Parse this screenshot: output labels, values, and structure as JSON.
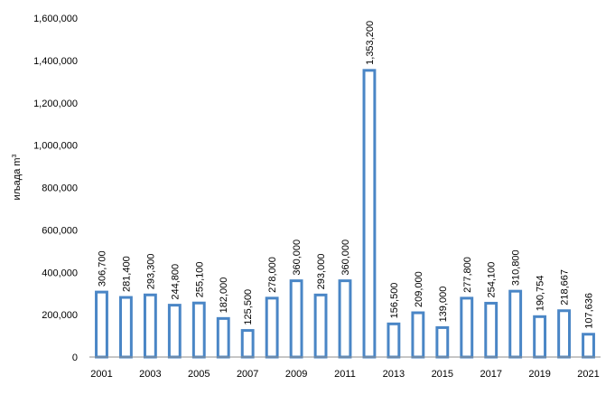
{
  "chart_data": {
    "type": "bar",
    "title": "",
    "xlabel": "",
    "ylabel": "иљада m",
    "ylabel_superscript": "3",
    "ylim": [
      0,
      1600000
    ],
    "yticks": [
      0,
      200000,
      400000,
      600000,
      800000,
      1000000,
      1200000,
      1400000,
      1600000
    ],
    "ytick_labels": [
      "0",
      "200,000",
      "400,000",
      "600,000",
      "800,000",
      "1,000,000",
      "1,200,000",
      "1,400,000",
      "1,600,000"
    ],
    "categories": [
      "2001",
      "2002",
      "2003",
      "2004",
      "2005",
      "2006",
      "2007",
      "2008",
      "2009",
      "2010",
      "2011",
      "2012",
      "2013",
      "2014",
      "2015",
      "2016",
      "2017",
      "2018",
      "2019",
      "2020",
      "2021"
    ],
    "xtick_labels_shown": [
      "2001",
      "",
      "2003",
      "",
      "2005",
      "",
      "2007",
      "",
      "2009",
      "",
      "2011",
      "",
      "2013",
      "",
      "2015",
      "",
      "2017",
      "",
      "2019",
      "",
      "2021"
    ],
    "values": [
      306700,
      281400,
      293300,
      244800,
      255100,
      182000,
      125500,
      278000,
      360000,
      293000,
      360000,
      1353200,
      156500,
      209000,
      139000,
      277800,
      254100,
      310800,
      190754,
      218667,
      107636
    ],
    "data_labels": [
      "306,700",
      "281,400",
      "293,300",
      "244,800",
      "255,100",
      "182,000",
      "125,500",
      "278,000",
      "360,000",
      "293,000",
      "360,000",
      "1,353,200",
      "156,500",
      "209,000",
      "139,000",
      "277,800",
      "254,100",
      "310,800",
      "190,754",
      "218,667",
      "107,636"
    ],
    "grid": false,
    "legend": "none",
    "bar_style": "outline",
    "colors": {
      "bar_stroke": "#4A86C6",
      "bar_fill": "#ffffff",
      "axis": "#8c8c8c",
      "text": "#000000"
    }
  }
}
